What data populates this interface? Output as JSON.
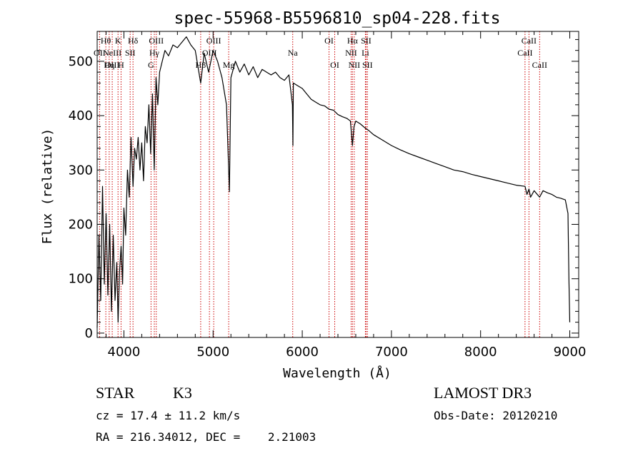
{
  "chart_data": {
    "type": "line",
    "title": "spec-55968-B5596810_sp04-228.fits",
    "xlabel": "Wavelength (Å)",
    "ylabel": "Flux (relative)",
    "xlim": [
      3700,
      9100
    ],
    "ylim": [
      -8,
      555
    ],
    "x_ticks": [
      4000,
      5000,
      6000,
      7000,
      8000,
      9000
    ],
    "y_ticks": [
      0,
      100,
      200,
      300,
      400,
      500
    ],
    "grid": false,
    "series": [
      {
        "name": "spectrum",
        "x": [
          3700,
          3720,
          3740,
          3760,
          3780,
          3800,
          3820,
          3840,
          3860,
          3880,
          3900,
          3920,
          3935,
          3950,
          3968,
          3985,
          4000,
          4020,
          4040,
          4060,
          4080,
          4102,
          4120,
          4140,
          4160,
          4180,
          4200,
          4220,
          4240,
          4260,
          4280,
          4300,
          4320,
          4340,
          4360,
          4380,
          4400,
          4430,
          4460,
          4500,
          4550,
          4600,
          4650,
          4700,
          4750,
          4800,
          4861,
          4900,
          4950,
          5000,
          5050,
          5100,
          5150,
          5175,
          5183,
          5200,
          5250,
          5300,
          5350,
          5400,
          5450,
          5500,
          5550,
          5600,
          5650,
          5700,
          5750,
          5800,
          5850,
          5890,
          5895,
          5900,
          5950,
          6000,
          6050,
          6100,
          6150,
          6200,
          6250,
          6300,
          6350,
          6400,
          6450,
          6500,
          6540,
          6563,
          6580,
          6600,
          6650,
          6700,
          6750,
          6800,
          6900,
          7000,
          7100,
          7200,
          7300,
          7400,
          7500,
          7600,
          7700,
          7800,
          7900,
          8000,
          8100,
          8200,
          8300,
          8400,
          8498,
          8520,
          8542,
          8560,
          8600,
          8662,
          8700,
          8750,
          8800,
          8850,
          8900,
          8950,
          8980,
          8990,
          9000
        ],
        "y": [
          10,
          180,
          60,
          270,
          90,
          220,
          70,
          200,
          40,
          180,
          60,
          130,
          20,
          110,
          160,
          90,
          230,
          180,
          300,
          250,
          360,
          270,
          340,
          320,
          360,
          300,
          350,
          280,
          380,
          350,
          420,
          330,
          440,
          300,
          470,
          420,
          480,
          500,
          520,
          510,
          530,
          525,
          535,
          545,
          530,
          520,
          460,
          515,
          480,
          520,
          500,
          470,
          420,
          300,
          260,
          470,
          500,
          480,
          495,
          475,
          490,
          470,
          485,
          480,
          475,
          480,
          470,
          465,
          475,
          420,
          345,
          460,
          455,
          450,
          440,
          430,
          425,
          420,
          418,
          412,
          410,
          402,
          398,
          395,
          390,
          345,
          380,
          390,
          385,
          378,
          372,
          365,
          355,
          345,
          337,
          330,
          324,
          318,
          312,
          306,
          300,
          297,
          292,
          288,
          284,
          280,
          276,
          272,
          270,
          255,
          265,
          250,
          262,
          250,
          262,
          258,
          255,
          250,
          248,
          245,
          220,
          100,
          20
        ]
      }
    ],
    "line_markers": [
      {
        "wave": 3797,
        "labels": [
          {
            "text": "Hθ",
            "row": 0
          }
        ]
      },
      {
        "wave": 3727,
        "labels": [
          {
            "text": "OII",
            "row": 1
          }
        ]
      },
      {
        "wave": 3835,
        "labels": [
          {
            "text": "Hη",
            "row": 2
          }
        ]
      },
      {
        "wave": 3869,
        "labels": [
          {
            "text": "NeIII",
            "row": 1
          },
          {
            "text": "OIII",
            "row": 2
          }
        ]
      },
      {
        "wave": 3934,
        "labels": [
          {
            "text": "K",
            "row": 0
          }
        ]
      },
      {
        "wave": 3968,
        "labels": [
          {
            "text": "H",
            "row": 2
          }
        ]
      },
      {
        "wave": 4070,
        "labels": [
          {
            "text": "SII",
            "row": 1
          }
        ]
      },
      {
        "wave": 4102,
        "labels": [
          {
            "text": "Hδ",
            "row": 0
          }
        ]
      },
      {
        "wave": 4304,
        "labels": [
          {
            "text": "G",
            "row": 2
          }
        ]
      },
      {
        "wave": 4341,
        "labels": [
          {
            "text": "Hγ",
            "row": 1
          }
        ]
      },
      {
        "wave": 4363,
        "labels": [
          {
            "text": "OIII",
            "row": 0
          }
        ]
      },
      {
        "wave": 4861,
        "labels": [
          {
            "text": "Hβ",
            "row": 2
          }
        ]
      },
      {
        "wave": 4959,
        "labels": [
          {
            "text": "OIII",
            "row": 1
          }
        ]
      },
      {
        "wave": 5007,
        "labels": [
          {
            "text": "OIII",
            "row": 0
          }
        ]
      },
      {
        "wave": 5175,
        "labels": [
          {
            "text": "Mg",
            "row": 2
          }
        ]
      },
      {
        "wave": 5893,
        "labels": [
          {
            "text": "Na",
            "row": 1
          }
        ]
      },
      {
        "wave": 6300,
        "labels": [
          {
            "text": "OI",
            "row": 0
          }
        ]
      },
      {
        "wave": 6364,
        "labels": [
          {
            "text": "OI",
            "row": 2
          }
        ]
      },
      {
        "wave": 6548,
        "labels": [
          {
            "text": "NII",
            "row": 1
          }
        ]
      },
      {
        "wave": 6563,
        "labels": [
          {
            "text": "Hα",
            "row": 0
          }
        ]
      },
      {
        "wave": 6583,
        "labels": [
          {
            "text": "NII",
            "row": 2
          }
        ]
      },
      {
        "wave": 6708,
        "labels": [
          {
            "text": "Li",
            "row": 1
          }
        ]
      },
      {
        "wave": 6716,
        "labels": [
          {
            "text": "SII",
            "row": 0
          }
        ]
      },
      {
        "wave": 6731,
        "labels": [
          {
            "text": "SII",
            "row": 2
          }
        ]
      },
      {
        "wave": 8498,
        "labels": [
          {
            "text": "CaII",
            "row": 1
          }
        ]
      },
      {
        "wave": 8542,
        "labels": [
          {
            "text": "CaII",
            "row": 0
          }
        ]
      },
      {
        "wave": 8662,
        "labels": [
          {
            "text": "CaII",
            "row": 2
          }
        ]
      }
    ],
    "colors": {
      "spectrum": "#000000",
      "marker": "#cc0000",
      "axes": "#000000"
    }
  },
  "info": {
    "object_class": "STAR",
    "subclass": "K3",
    "cz": "cz = 17.4 ± 11.2 km/s",
    "coords": "RA = 216.34012, DEC =    2.21003",
    "survey": "LAMOST DR3",
    "obs_date": "Obs-Date: 20120210"
  }
}
